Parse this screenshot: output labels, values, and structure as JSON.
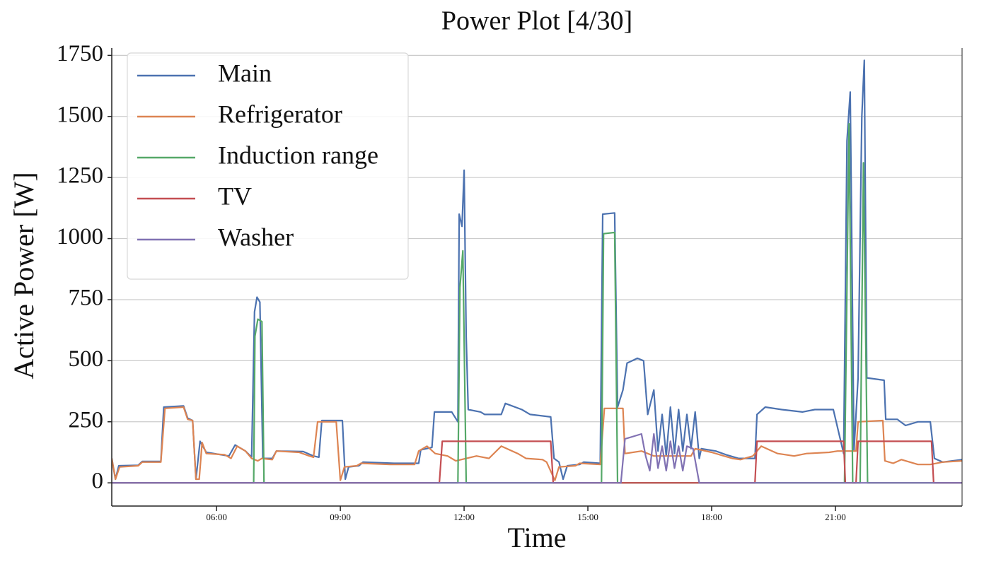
{
  "chart_data": {
    "type": "line",
    "title": "Power Plot [4/30]",
    "x_label": "Time",
    "y_label": "Active Power [W]",
    "xlim": [
      3.46,
      24.07
    ],
    "ylim": [
      -95,
      1780
    ],
    "xticks": [
      {
        "value": 6,
        "label": "06:00"
      },
      {
        "value": 9,
        "label": "09:00"
      },
      {
        "value": 12,
        "label": "12:00"
      },
      {
        "value": 15,
        "label": "15:00"
      },
      {
        "value": 18,
        "label": "18:00"
      },
      {
        "value": 21,
        "label": "21:00"
      }
    ],
    "yticks": [
      0,
      250,
      500,
      750,
      1000,
      1250,
      1500,
      1750
    ],
    "grid": true,
    "legend": "upper left",
    "series": [
      {
        "name": "Main",
        "color": "#4c72b0",
        "x": [
          3.46,
          3.55,
          3.63,
          4.1,
          4.2,
          4.65,
          4.72,
          5.2,
          5.3,
          5.42,
          5.5,
          5.6,
          5.75,
          6.3,
          6.45,
          6.7,
          6.85,
          6.92,
          6.98,
          7.05,
          7.12,
          7.35,
          7.45,
          8.1,
          8.35,
          8.48,
          8.55,
          9.05,
          9.12,
          9.2,
          9.45,
          9.55,
          10.3,
          10.9,
          10.95,
          11.22,
          11.28,
          11.7,
          11.85,
          11.88,
          11.95,
          12.0,
          12.05,
          12.1,
          12.4,
          12.5,
          12.9,
          13.0,
          13.4,
          13.6,
          14.1,
          14.18,
          14.3,
          14.4,
          14.5,
          14.8,
          14.9,
          15.3,
          15.36,
          15.65,
          15.72,
          15.85,
          15.95,
          16.2,
          16.35,
          16.45,
          16.6,
          16.7,
          16.8,
          16.9,
          17.0,
          17.1,
          17.2,
          17.3,
          17.4,
          17.5,
          17.6,
          17.7,
          17.75,
          18.1,
          18.35,
          18.65,
          19.05,
          19.1,
          19.3,
          19.7,
          20.2,
          20.5,
          20.95,
          21.2,
          21.28,
          21.36,
          21.45,
          21.55,
          21.64,
          21.7,
          21.76,
          22.18,
          22.22,
          22.5,
          22.7,
          23.0,
          23.3,
          23.4,
          23.6,
          24.07
        ],
        "values": [
          100,
          15,
          70,
          72,
          88,
          88,
          310,
          315,
          265,
          255,
          15,
          170,
          125,
          110,
          155,
          130,
          105,
          700,
          760,
          740,
          100,
          100,
          130,
          128,
          110,
          105,
          255,
          255,
          15,
          65,
          70,
          85,
          80,
          80,
          135,
          145,
          290,
          290,
          250,
          1100,
          1050,
          1280,
          600,
          300,
          290,
          280,
          280,
          325,
          300,
          280,
          270,
          100,
          85,
          15,
          70,
          75,
          85,
          80,
          1100,
          1105,
          310,
          380,
          490,
          510,
          500,
          280,
          380,
          130,
          280,
          110,
          310,
          120,
          300,
          130,
          280,
          140,
          290,
          100,
          140,
          130,
          115,
          100,
          100,
          280,
          310,
          300,
          290,
          300,
          300,
          120,
          1400,
          1600,
          130,
          430,
          1500,
          1730,
          430,
          420,
          260,
          260,
          235,
          250,
          250,
          100,
          85,
          95
        ]
      },
      {
        "name": "Refrigerator",
        "color": "#dd8452",
        "x": [
          3.46,
          3.55,
          3.65,
          4.1,
          4.2,
          4.65,
          4.75,
          5.2,
          5.3,
          5.42,
          5.5,
          5.58,
          5.65,
          5.75,
          6.2,
          6.35,
          6.5,
          6.7,
          6.85,
          7.0,
          7.1,
          7.35,
          7.45,
          8.0,
          8.25,
          8.35,
          8.45,
          8.9,
          9.0,
          9.1,
          9.4,
          9.5,
          10.2,
          10.8,
          10.9,
          11.1,
          11.3,
          11.6,
          11.8,
          12.3,
          12.6,
          12.9,
          13.3,
          13.5,
          13.9,
          14.0,
          14.2,
          14.3,
          14.7,
          14.8,
          15.3,
          15.4,
          15.85,
          15.9,
          16.3,
          16.6,
          17.5,
          17.6,
          18.0,
          18.3,
          18.5,
          18.7,
          19.0,
          19.2,
          19.6,
          20.0,
          20.3,
          20.85,
          21.05,
          21.5,
          21.55,
          22.15,
          22.2,
          22.4,
          22.6,
          23.0,
          23.3,
          23.6,
          24.07
        ],
        "values": [
          100,
          15,
          65,
          70,
          85,
          85,
          305,
          310,
          260,
          255,
          15,
          15,
          165,
          120,
          115,
          100,
          150,
          130,
          100,
          90,
          100,
          95,
          130,
          125,
          110,
          105,
          250,
          250,
          10,
          65,
          70,
          80,
          75,
          75,
          130,
          150,
          120,
          110,
          90,
          110,
          100,
          150,
          120,
          100,
          95,
          85,
          10,
          65,
          70,
          80,
          75,
          305,
          305,
          120,
          130,
          110,
          110,
          140,
          125,
          110,
          100,
          95,
          110,
          150,
          120,
          110,
          120,
          125,
          130,
          130,
          250,
          255,
          90,
          80,
          95,
          75,
          75,
          85,
          90
        ]
      },
      {
        "name": "Induction range",
        "color": "#55a868",
        "x": [
          3.46,
          6.9,
          6.93,
          7.0,
          7.1,
          7.15,
          11.85,
          11.9,
          11.97,
          12.05,
          15.33,
          15.38,
          15.65,
          15.72,
          21.22,
          21.33,
          21.42,
          21.6,
          21.68,
          21.78,
          24.07
        ],
        "values": [
          0,
          0,
          600,
          670,
          660,
          0,
          0,
          800,
          950,
          0,
          0,
          1020,
          1025,
          0,
          0,
          1470,
          0,
          0,
          1310,
          0,
          0
        ]
      },
      {
        "name": "TV",
        "color": "#c44e52",
        "x": [
          3.46,
          11.4,
          11.47,
          14.1,
          14.16,
          19.05,
          19.1,
          21.2,
          21.24,
          21.5,
          21.55,
          23.33,
          23.38,
          24.07
        ],
        "values": [
          0,
          0,
          170,
          170,
          0,
          0,
          170,
          170,
          0,
          0,
          170,
          170,
          0,
          0
        ]
      },
      {
        "name": "Washer",
        "color": "#8172b3",
        "x": [
          3.46,
          15.8,
          15.9,
          16.3,
          16.4,
          16.5,
          16.6,
          16.7,
          16.8,
          16.9,
          17.0,
          17.1,
          17.2,
          17.3,
          17.4,
          17.55,
          17.7,
          24.07
        ],
        "values": [
          0,
          0,
          180,
          200,
          110,
          50,
          200,
          60,
          150,
          50,
          170,
          60,
          150,
          50,
          150,
          140,
          0,
          0
        ]
      }
    ]
  }
}
